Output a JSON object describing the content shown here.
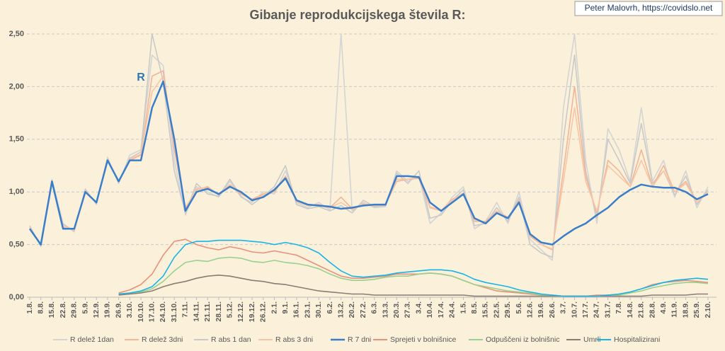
{
  "chart_data": {
    "type": "line",
    "title": "Gibanje reprodukcijskega števila R:",
    "credit": "Peter Malovrh, https://covidslo.net",
    "annotation": "R",
    "categories": [
      "1.8.",
      "8.8.",
      "15.8.",
      "22.8.",
      "29.8.",
      "5.9.",
      "12.9.",
      "19.9.",
      "26.9.",
      "3.10.",
      "10.10.",
      "17.10.",
      "24.10.",
      "31.10.",
      "7.11.",
      "14.11.",
      "21.11.",
      "28.11.",
      "5.12.",
      "12.12.",
      "19.12.",
      "26.12.",
      "2.1.",
      "9.1.",
      "16.1.",
      "23.1.",
      "30.1.",
      "6.2.",
      "13.2.",
      "20.2.",
      "27.2.",
      "6.3.",
      "13.3.",
      "20.3.",
      "27.3.",
      "3.4.",
      "10.4.",
      "17.4.",
      "24.4.",
      "1.5.",
      "8.5.",
      "15.5.",
      "22.5.",
      "29.5.",
      "5.6.",
      "12.6.",
      "19.6.",
      "26.6.",
      "3.7.",
      "10.7.",
      "17.7.",
      "24.7.",
      "31.7.",
      "7.8.",
      "14.8.",
      "21.8.",
      "28.8.",
      "4.9.",
      "11.9.",
      "18.9.",
      "25.9.",
      "2.10."
    ],
    "ylim": [
      0,
      2.5
    ],
    "yticks": [
      {
        "value": 0,
        "label": "0,00"
      },
      {
        "value": 0.5,
        "label": "0,50"
      },
      {
        "value": 1,
        "label": "1,00"
      },
      {
        "value": 1.5,
        "label": "1,50"
      },
      {
        "value": 2,
        "label": "2,00"
      },
      {
        "value": 2.5,
        "label": "2,50"
      }
    ],
    "grid": true,
    "series": [
      {
        "name": "R delež 1dan",
        "color": "#d4d4d4",
        "values": [
          0.68,
          0.48,
          1.12,
          0.7,
          0.62,
          1.03,
          0.88,
          1.33,
          1.08,
          1.35,
          1.4,
          2.3,
          2.2,
          1.3,
          0.78,
          1.05,
          1.0,
          0.95,
          1.1,
          0.95,
          0.9,
          1.0,
          0.98,
          1.2,
          0.9,
          0.85,
          0.9,
          0.83,
          2.5,
          0.82,
          0.9,
          0.85,
          0.86,
          1.2,
          1.1,
          1.15,
          0.7,
          0.8,
          0.95,
          1.05,
          0.65,
          0.72,
          0.9,
          0.7,
          1.0,
          0.55,
          0.45,
          0.35,
          1.8,
          2.5,
          1.3,
          0.7,
          1.6,
          1.4,
          1.1,
          1.8,
          1.1,
          1.3,
          0.95,
          1.2,
          0.85,
          1.05
        ]
      },
      {
        "name": "R delež 3dni",
        "color": "#f2b596",
        "values": [
          0.66,
          0.5,
          1.1,
          0.66,
          0.64,
          1.0,
          0.9,
          1.3,
          1.1,
          1.3,
          1.35,
          2.1,
          2.15,
          1.4,
          0.85,
          1.02,
          1.05,
          0.97,
          1.06,
          0.98,
          0.93,
          0.98,
          1.0,
          1.15,
          0.92,
          0.87,
          0.88,
          0.85,
          0.95,
          0.84,
          0.88,
          0.87,
          0.88,
          1.1,
          1.12,
          1.13,
          0.85,
          0.82,
          0.93,
          0.98,
          0.72,
          0.72,
          0.82,
          0.75,
          0.92,
          0.58,
          0.5,
          0.45,
          1.2,
          2.0,
          1.15,
          0.8,
          1.3,
          1.2,
          1.05,
          1.4,
          1.05,
          1.25,
          1.0,
          1.1,
          0.9,
          1.0
        ]
      },
      {
        "name": "R abs 1 dan",
        "color": "#c9c9c9",
        "values": [
          0.67,
          0.49,
          1.08,
          0.69,
          0.63,
          1.02,
          0.89,
          1.31,
          1.09,
          1.32,
          1.38,
          2.5,
          2.05,
          1.2,
          0.8,
          1.08,
          0.98,
          0.96,
          1.12,
          0.96,
          0.88,
          0.96,
          1.05,
          1.25,
          0.88,
          0.84,
          0.86,
          0.82,
          0.87,
          0.8,
          0.92,
          0.86,
          0.87,
          1.18,
          1.08,
          1.2,
          0.75,
          0.78,
          0.92,
          1.02,
          0.68,
          0.7,
          0.85,
          0.72,
          0.95,
          0.5,
          0.42,
          0.38,
          1.5,
          2.3,
          1.2,
          0.75,
          1.5,
          1.3,
          1.08,
          1.65,
          1.08,
          1.2,
          0.97,
          1.15,
          0.88,
          1.02
        ]
      },
      {
        "name": "R abs 3 dni",
        "color": "#f8c6a6",
        "values": [
          0.66,
          0.5,
          1.09,
          0.67,
          0.64,
          1.01,
          0.9,
          1.3,
          1.1,
          1.31,
          1.36,
          1.95,
          2.1,
          1.45,
          0.84,
          1.03,
          1.04,
          0.98,
          1.07,
          0.99,
          0.92,
          0.97,
          1.02,
          1.14,
          0.91,
          0.87,
          0.87,
          0.85,
          0.9,
          0.83,
          0.89,
          0.87,
          0.88,
          1.12,
          1.12,
          1.14,
          0.86,
          0.82,
          0.92,
          0.99,
          0.73,
          0.71,
          0.82,
          0.76,
          0.9,
          0.6,
          0.5,
          0.46,
          1.1,
          1.8,
          1.1,
          0.82,
          1.25,
          1.15,
          1.05,
          1.3,
          1.05,
          1.2,
          1.0,
          1.08,
          0.9,
          1.0
        ]
      },
      {
        "name": "R 7 dni",
        "color": "#3a7dc9",
        "width": 2.5,
        "values": [
          0.65,
          0.5,
          1.1,
          0.65,
          0.65,
          1.0,
          0.9,
          1.3,
          1.1,
          1.3,
          1.3,
          1.8,
          2.05,
          1.5,
          0.82,
          1.0,
          1.03,
          0.98,
          1.05,
          1.0,
          0.92,
          0.95,
          1.02,
          1.13,
          0.92,
          0.88,
          0.87,
          0.86,
          0.84,
          0.85,
          0.87,
          0.88,
          0.88,
          1.15,
          1.15,
          1.14,
          0.9,
          0.82,
          0.9,
          0.98,
          0.75,
          0.7,
          0.8,
          0.75,
          0.9,
          0.6,
          0.52,
          0.5,
          0.58,
          0.65,
          0.7,
          0.78,
          0.85,
          0.95,
          1.02,
          1.07,
          1.05,
          1.04,
          1.04,
          1.0,
          0.93,
          0.98
        ]
      },
      {
        "name": "Sprejeti v bolnišnice",
        "color": "#e8907a",
        "values": [
          null,
          null,
          null,
          null,
          null,
          null,
          null,
          null,
          0.04,
          0.07,
          0.12,
          0.22,
          0.4,
          0.53,
          0.55,
          0.5,
          0.47,
          0.45,
          0.48,
          0.46,
          0.43,
          0.42,
          0.44,
          0.42,
          0.4,
          0.35,
          0.3,
          0.25,
          0.2,
          0.18,
          0.18,
          0.19,
          0.2,
          0.22,
          0.22,
          0.22,
          0.23,
          0.22,
          0.2,
          0.16,
          0.12,
          0.09,
          0.06,
          0.05,
          0.04,
          0.03,
          0.02,
          0.02,
          0.01,
          0.01,
          0.01,
          0.02,
          0.02,
          0.03,
          0.05,
          0.08,
          0.12,
          0.14,
          0.15,
          0.16,
          0.15,
          0.14
        ]
      },
      {
        "name": "Odpuščeni iz bolnišnic",
        "color": "#98d090",
        "values": [
          null,
          null,
          null,
          null,
          null,
          null,
          null,
          null,
          0.03,
          0.04,
          0.05,
          0.08,
          0.15,
          0.25,
          0.33,
          0.35,
          0.34,
          0.37,
          0.38,
          0.37,
          0.34,
          0.33,
          0.35,
          0.33,
          0.32,
          0.3,
          0.27,
          0.22,
          0.18,
          0.16,
          0.16,
          0.17,
          0.19,
          0.2,
          0.2,
          0.22,
          0.23,
          0.22,
          0.2,
          0.16,
          0.12,
          0.1,
          0.08,
          0.06,
          0.05,
          0.04,
          0.02,
          0.02,
          0.01,
          0.01,
          0.01,
          0.01,
          0.02,
          0.02,
          0.04,
          0.06,
          0.09,
          0.11,
          0.13,
          0.14,
          0.14,
          0.13
        ]
      },
      {
        "name": "Umrli",
        "color": "#8c7b70",
        "values": [
          null,
          null,
          null,
          null,
          null,
          null,
          null,
          null,
          0.02,
          0.03,
          0.04,
          0.06,
          0.1,
          0.13,
          0.15,
          0.18,
          0.2,
          0.21,
          0.2,
          0.18,
          0.16,
          0.15,
          0.13,
          0.12,
          0.1,
          0.08,
          0.06,
          0.05,
          0.04,
          0.03,
          0.03,
          0.02,
          0.02,
          0.02,
          0.02,
          0.02,
          0.02,
          0.02,
          0.02,
          0.02,
          0.01,
          0.01,
          0.01,
          0.01,
          0.01,
          0.01,
          0.01,
          0.01,
          0.01,
          0.01,
          0.01,
          0.01,
          0.01,
          0.01,
          0.01,
          0.01,
          0.02,
          0.02,
          0.02,
          0.02,
          0.03,
          0.03
        ]
      },
      {
        "name": "Hospitalizirani",
        "color": "#16b4e8",
        "values": [
          null,
          null,
          null,
          null,
          null,
          null,
          null,
          null,
          0.03,
          0.04,
          0.06,
          0.1,
          0.2,
          0.38,
          0.5,
          0.53,
          0.53,
          0.54,
          0.54,
          0.54,
          0.53,
          0.52,
          0.5,
          0.52,
          0.5,
          0.47,
          0.42,
          0.33,
          0.25,
          0.2,
          0.19,
          0.2,
          0.21,
          0.23,
          0.24,
          0.25,
          0.26,
          0.26,
          0.25,
          0.22,
          0.17,
          0.14,
          0.12,
          0.1,
          0.07,
          0.05,
          0.03,
          0.02,
          0.01,
          0.01,
          0.01,
          0.01,
          0.02,
          0.03,
          0.05,
          0.08,
          0.11,
          0.14,
          0.16,
          0.17,
          0.18,
          0.17
        ]
      }
    ]
  }
}
